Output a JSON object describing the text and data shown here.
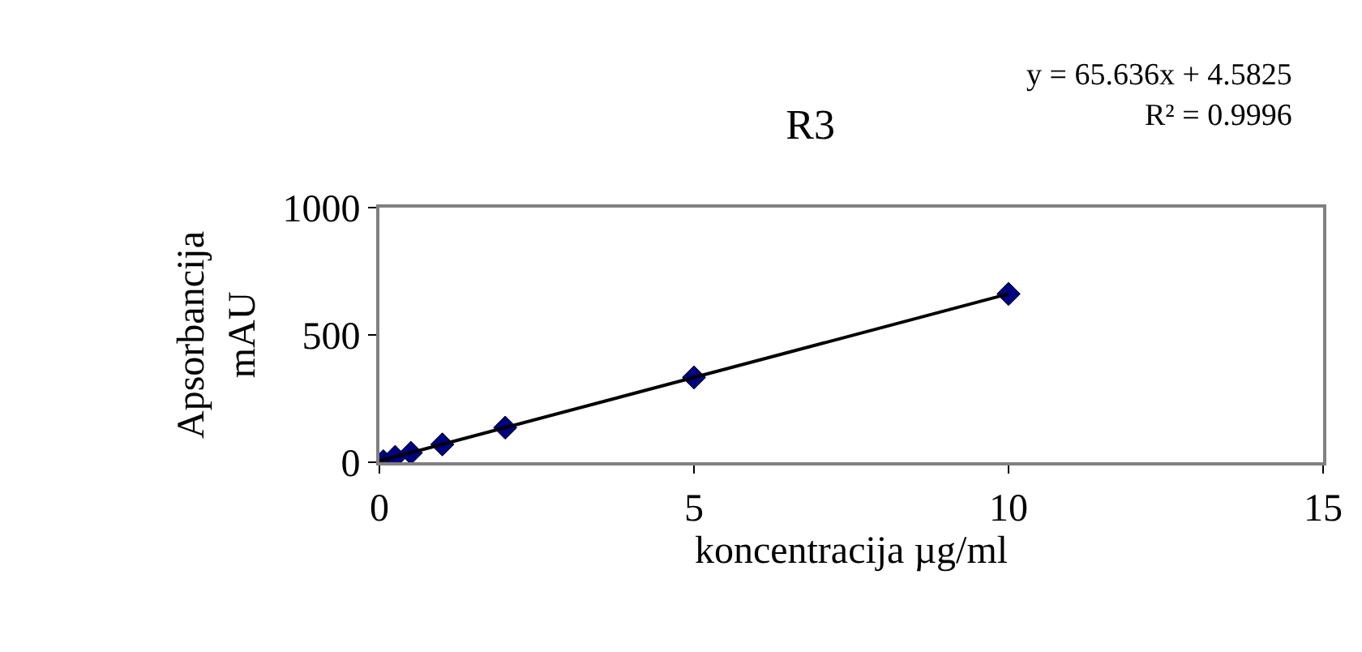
{
  "chart_data": {
    "type": "scatter",
    "title": "R3",
    "xlabel": "koncentracija µg/ml",
    "ylabel": "Apsorbancija\nmAU",
    "annotations": [
      "y = 65.636x + 4.5825",
      "R² = 0.9996"
    ],
    "xlim": [
      0,
      15
    ],
    "xticks": [
      0,
      5,
      10,
      15
    ],
    "ylim": [
      0,
      1000
    ],
    "yticks": [
      0,
      500,
      1000
    ],
    "series": [
      {
        "color": "#000080",
        "marker": "diamond",
        "x": [
          0.0625,
          0.25,
          0.5,
          1,
          2,
          5,
          10
        ],
        "values": [
          4,
          21,
          37,
          70,
          136,
          333,
          661
        ]
      },
      {
        "type": "line",
        "color": "#000000",
        "line_style": "solid",
        "x": [
          0,
          10
        ],
        "values": [
          5,
          661
        ]
      }
    ]
  }
}
